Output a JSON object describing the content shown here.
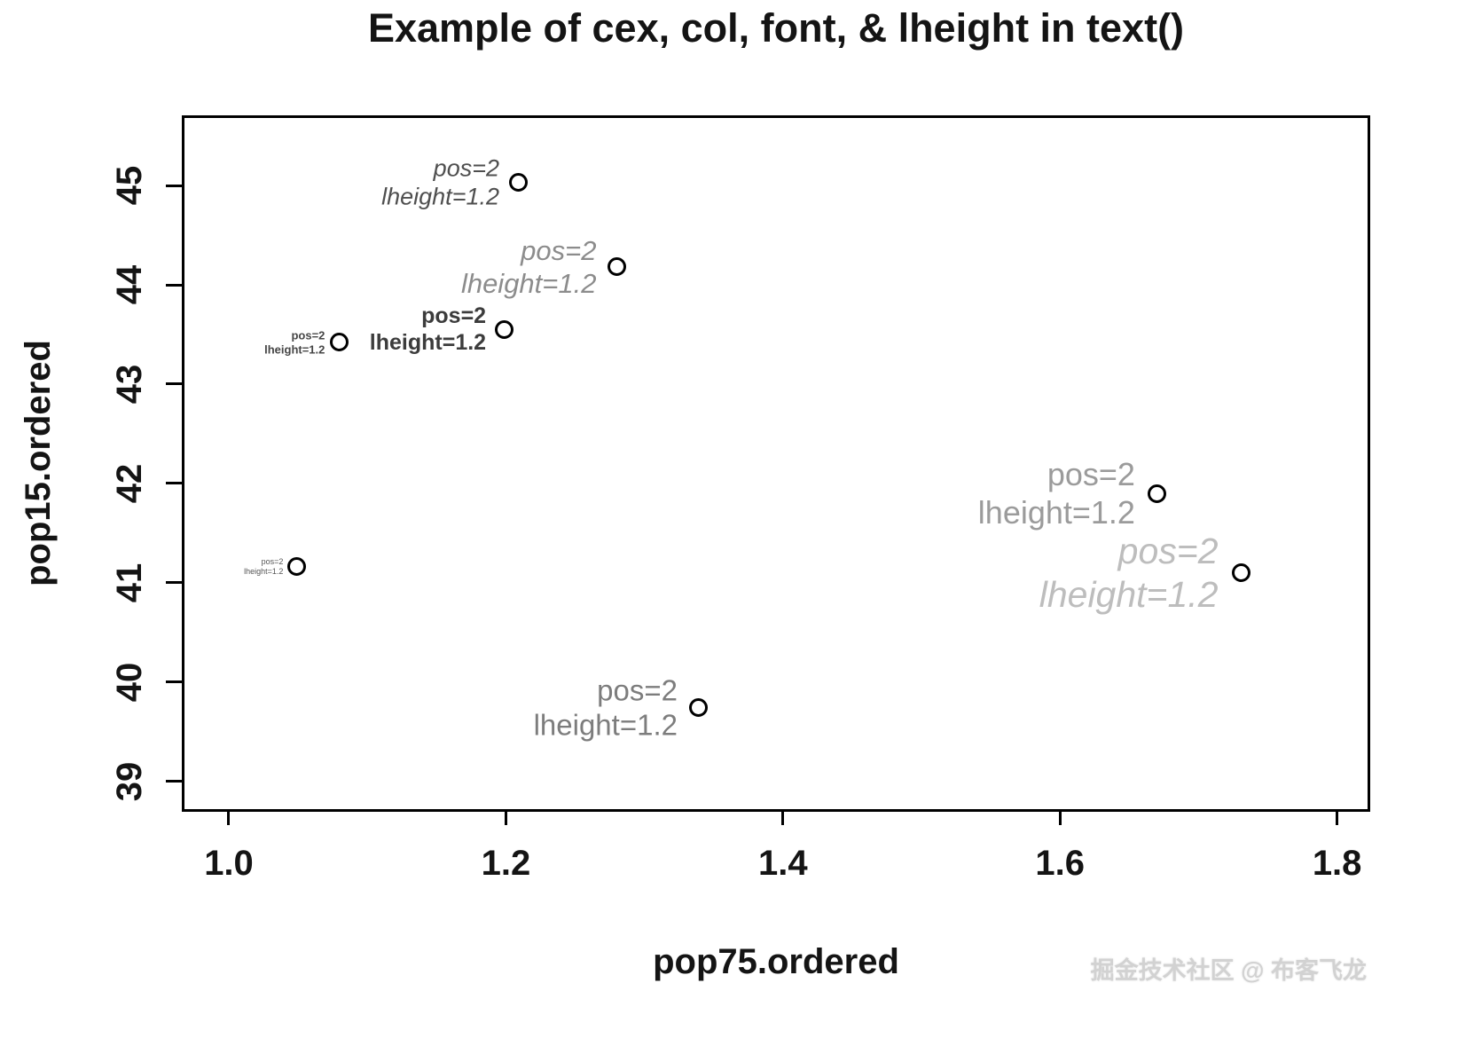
{
  "watermark": "掘金技术社区 @ 布客飞龙",
  "chart_data": {
    "type": "scatter",
    "title": "Example of cex, col, font, & lheight in text()",
    "xlabel": "pop75.ordered",
    "ylabel": "pop15.ordered",
    "xlim": [
      0.968,
      1.822
    ],
    "ylim": [
      38.72,
      45.68
    ],
    "grid": false,
    "marker": "open-circle",
    "x_ticks": [
      1.0,
      1.2,
      1.4,
      1.6,
      1.8
    ],
    "x_tick_labels": [
      "1.0",
      "1.2",
      "1.4",
      "1.6",
      "1.8"
    ],
    "y_ticks": [
      39,
      40,
      41,
      42,
      43,
      44,
      45
    ],
    "y_tick_labels": [
      "39",
      "40",
      "41",
      "42",
      "43",
      "44",
      "45"
    ],
    "points": [
      {
        "x": 1.209,
        "y": 45.03,
        "lines": [
          "pos=2",
          "lheight=1.2"
        ],
        "pos": 2,
        "lheight": 1.2,
        "font_px": 27,
        "color": "#4f4f4f",
        "italic": true,
        "bold": false
      },
      {
        "x": 1.28,
        "y": 44.18,
        "lines": [
          "pos=2",
          "lheight=1.2"
        ],
        "pos": 2,
        "lheight": 1.2,
        "font_px": 31,
        "color": "#8c8c8c",
        "italic": true,
        "bold": false
      },
      {
        "x": 1.199,
        "y": 43.55,
        "lines": [
          "pos=2",
          "lheight=1.2"
        ],
        "pos": 2,
        "lheight": 1.2,
        "font_px": 25,
        "color": "#3c3c3c",
        "italic": false,
        "bold": true
      },
      {
        "x": 1.08,
        "y": 43.42,
        "lines": [
          "pos=2",
          "lheight=1.2"
        ],
        "pos": 2,
        "lheight": 1.2,
        "font_px": 13,
        "color": "#464646",
        "italic": false,
        "bold": true
      },
      {
        "x": 1.049,
        "y": 41.16,
        "lines": [
          "pos=2",
          "lheight=1.2"
        ],
        "pos": 2,
        "lheight": 1.2,
        "font_px": 9,
        "color": "#555555",
        "italic": false,
        "bold": false
      },
      {
        "x": 1.67,
        "y": 41.9,
        "lines": [
          "pos=2",
          "lheight=1.2"
        ],
        "pos": 2,
        "lheight": 1.2,
        "font_px": 36,
        "color": "#9b9b9b",
        "italic": false,
        "bold": false
      },
      {
        "x": 1.731,
        "y": 41.1,
        "lines": [
          "pos=2",
          "lheight=1.2"
        ],
        "pos": 2,
        "lheight": 1.2,
        "font_px": 41,
        "color": "#bdbdbd",
        "italic": true,
        "bold": false
      },
      {
        "x": 1.339,
        "y": 39.74,
        "lines": [
          "pos=2",
          "lheight=1.2"
        ],
        "pos": 2,
        "lheight": 1.2,
        "font_px": 33,
        "color": "#7d7d7d",
        "italic": false,
        "bold": false
      }
    ]
  }
}
